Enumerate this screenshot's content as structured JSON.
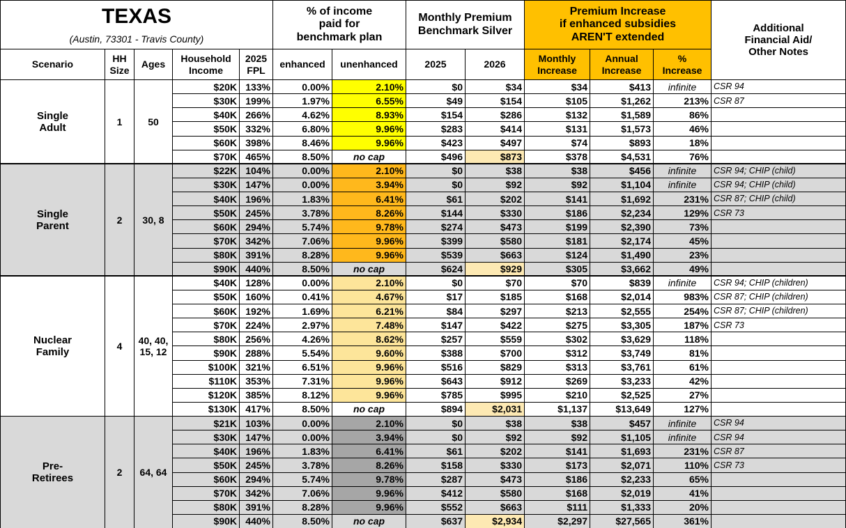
{
  "header": {
    "title": "TEXAS",
    "subtitle": "(Austin, 73301 - Travis County)",
    "income_heading": [
      "% of income",
      "paid for",
      "benchmark plan"
    ],
    "premium_heading": [
      "Monthly Premium",
      "Benchmark Silver"
    ],
    "increase_heading": [
      "Premium Increase",
      "if enhanced subsidies",
      "AREN'T extended"
    ],
    "notes_heading": [
      "Additional",
      "Financial Aid/",
      "Other Notes"
    ]
  },
  "columns": [
    "Scenario",
    "HH Size",
    "Ages",
    "Household Income",
    "2025 FPL",
    "enhanced",
    "unenhanced",
    "2025",
    "2026",
    "Monthly Increase",
    "Annual Increase",
    "% Increase"
  ],
  "groups": [
    {
      "scenario": "Single Adult",
      "hh_size": "1",
      "ages": "50",
      "fill": "#ffffff",
      "highlight": "#ffff00",
      "rows": [
        [
          "$20K",
          "133%",
          "0.00%",
          "2.10%",
          "$0",
          "$34",
          "$34",
          "$413",
          "infinite",
          "CSR 94"
        ],
        [
          "$30K",
          "199%",
          "1.97%",
          "6.55%",
          "$49",
          "$154",
          "$105",
          "$1,262",
          "213%",
          "CSR 87"
        ],
        [
          "$40K",
          "266%",
          "4.62%",
          "8.93%",
          "$154",
          "$286",
          "$132",
          "$1,589",
          "86%",
          null
        ],
        [
          "$50K",
          "332%",
          "6.80%",
          "9.96%",
          "$283",
          "$414",
          "$131",
          "$1,573",
          "46%",
          null
        ],
        [
          "$60K",
          "398%",
          "8.46%",
          "9.96%",
          "$423",
          "$497",
          "$74",
          "$893",
          "18%",
          null
        ],
        [
          "$70K",
          "465%",
          "8.50%",
          "no cap",
          "$496",
          "$873",
          "$378",
          "$4,531",
          "76%",
          null
        ]
      ]
    },
    {
      "scenario": "Single Parent",
      "hh_size": "2",
      "ages": "30, 8",
      "fill": "#d9d9d9",
      "highlight": "#ffb81c",
      "rows": [
        [
          "$22K",
          "104%",
          "0.00%",
          "2.10%",
          "$0",
          "$38",
          "$38",
          "$456",
          "infinite",
          "CSR 94; CHIP (child)"
        ],
        [
          "$30K",
          "147%",
          "0.00%",
          "3.94%",
          "$0",
          "$92",
          "$92",
          "$1,104",
          "infinite",
          "CSR 94; CHIP (child)"
        ],
        [
          "$40K",
          "196%",
          "1.83%",
          "6.41%",
          "$61",
          "$202",
          "$141",
          "$1,692",
          "231%",
          "CSR 87; CHIP (child)"
        ],
        [
          "$50K",
          "245%",
          "3.78%",
          "8.26%",
          "$144",
          "$330",
          "$186",
          "$2,234",
          "129%",
          "CSR 73"
        ],
        [
          "$60K",
          "294%",
          "5.74%",
          "9.78%",
          "$274",
          "$473",
          "$199",
          "$2,390",
          "73%",
          null
        ],
        [
          "$70K",
          "342%",
          "7.06%",
          "9.96%",
          "$399",
          "$580",
          "$181",
          "$2,174",
          "45%",
          null
        ],
        [
          "$80K",
          "391%",
          "8.28%",
          "9.96%",
          "$539",
          "$663",
          "$124",
          "$1,490",
          "23%",
          null
        ],
        [
          "$90K",
          "440%",
          "8.50%",
          "no cap",
          "$624",
          "$929",
          "$305",
          "$3,662",
          "49%",
          null
        ]
      ]
    },
    {
      "scenario": "Nuclear Family",
      "hh_size": "4",
      "ages": "40, 40, 15, 12",
      "fill": "#ffffff",
      "highlight": "#fde59a",
      "rows": [
        [
          "$40K",
          "128%",
          "0.00%",
          "2.10%",
          "$0",
          "$70",
          "$70",
          "$839",
          "infinite",
          "CSR 94; CHIP (children)"
        ],
        [
          "$50K",
          "160%",
          "0.41%",
          "4.67%",
          "$17",
          "$185",
          "$168",
          "$2,014",
          "983%",
          "CSR 87; CHIP (children)"
        ],
        [
          "$60K",
          "192%",
          "1.69%",
          "6.21%",
          "$84",
          "$297",
          "$213",
          "$2,555",
          "254%",
          "CSR 87; CHIP (children)"
        ],
        [
          "$70K",
          "224%",
          "2.97%",
          "7.48%",
          "$147",
          "$422",
          "$275",
          "$3,305",
          "187%",
          "CSR 73"
        ],
        [
          "$80K",
          "256%",
          "4.26%",
          "8.62%",
          "$257",
          "$559",
          "$302",
          "$3,629",
          "118%",
          null
        ],
        [
          "$90K",
          "288%",
          "5.54%",
          "9.60%",
          "$388",
          "$700",
          "$312",
          "$3,749",
          "81%",
          null
        ],
        [
          "$100K",
          "321%",
          "6.51%",
          "9.96%",
          "$516",
          "$829",
          "$313",
          "$3,761",
          "61%",
          null
        ],
        [
          "$110K",
          "353%",
          "7.31%",
          "9.96%",
          "$643",
          "$912",
          "$269",
          "$3,233",
          "42%",
          null
        ],
        [
          "$120K",
          "385%",
          "8.12%",
          "9.96%",
          "$785",
          "$995",
          "$210",
          "$2,525",
          "27%",
          null
        ],
        [
          "$130K",
          "417%",
          "8.50%",
          "no cap",
          "$894",
          "$2,031",
          "$1,137",
          "$13,649",
          "127%",
          null
        ]
      ]
    },
    {
      "scenario": "Pre-Retirees",
      "hh_size": "2",
      "ages": "64, 64",
      "fill": "#d9d9d9",
      "highlight": "#a6a6a6",
      "rows": [
        [
          "$21K",
          "103%",
          "0.00%",
          "2.10%",
          "$0",
          "$38",
          "$38",
          "$457",
          "infinite",
          "CSR 94"
        ],
        [
          "$30K",
          "147%",
          "0.00%",
          "3.94%",
          "$0",
          "$92",
          "$92",
          "$1,105",
          "infinite",
          "CSR 94"
        ],
        [
          "$40K",
          "196%",
          "1.83%",
          "6.41%",
          "$61",
          "$202",
          "$141",
          "$1,693",
          "231%",
          "CSR 87"
        ],
        [
          "$50K",
          "245%",
          "3.78%",
          "8.26%",
          "$158",
          "$330",
          "$173",
          "$2,071",
          "110%",
          "CSR 73"
        ],
        [
          "$60K",
          "294%",
          "5.74%",
          "9.78%",
          "$287",
          "$473",
          "$186",
          "$2,233",
          "65%",
          null
        ],
        [
          "$70K",
          "342%",
          "7.06%",
          "9.96%",
          "$412",
          "$580",
          "$168",
          "$2,019",
          "41%",
          null
        ],
        [
          "$80K",
          "391%",
          "8.28%",
          "9.96%",
          "$552",
          "$663",
          "$111",
          "$1,333",
          "20%",
          null
        ],
        [
          "$90K",
          "440%",
          "8.50%",
          "no cap",
          "$637",
          "$2,934",
          "$2,297",
          "$27,565",
          "361%",
          null
        ]
      ]
    }
  ],
  "colors": {
    "increase_header": "#ffc000",
    "last_2026": "#fde9b3"
  }
}
